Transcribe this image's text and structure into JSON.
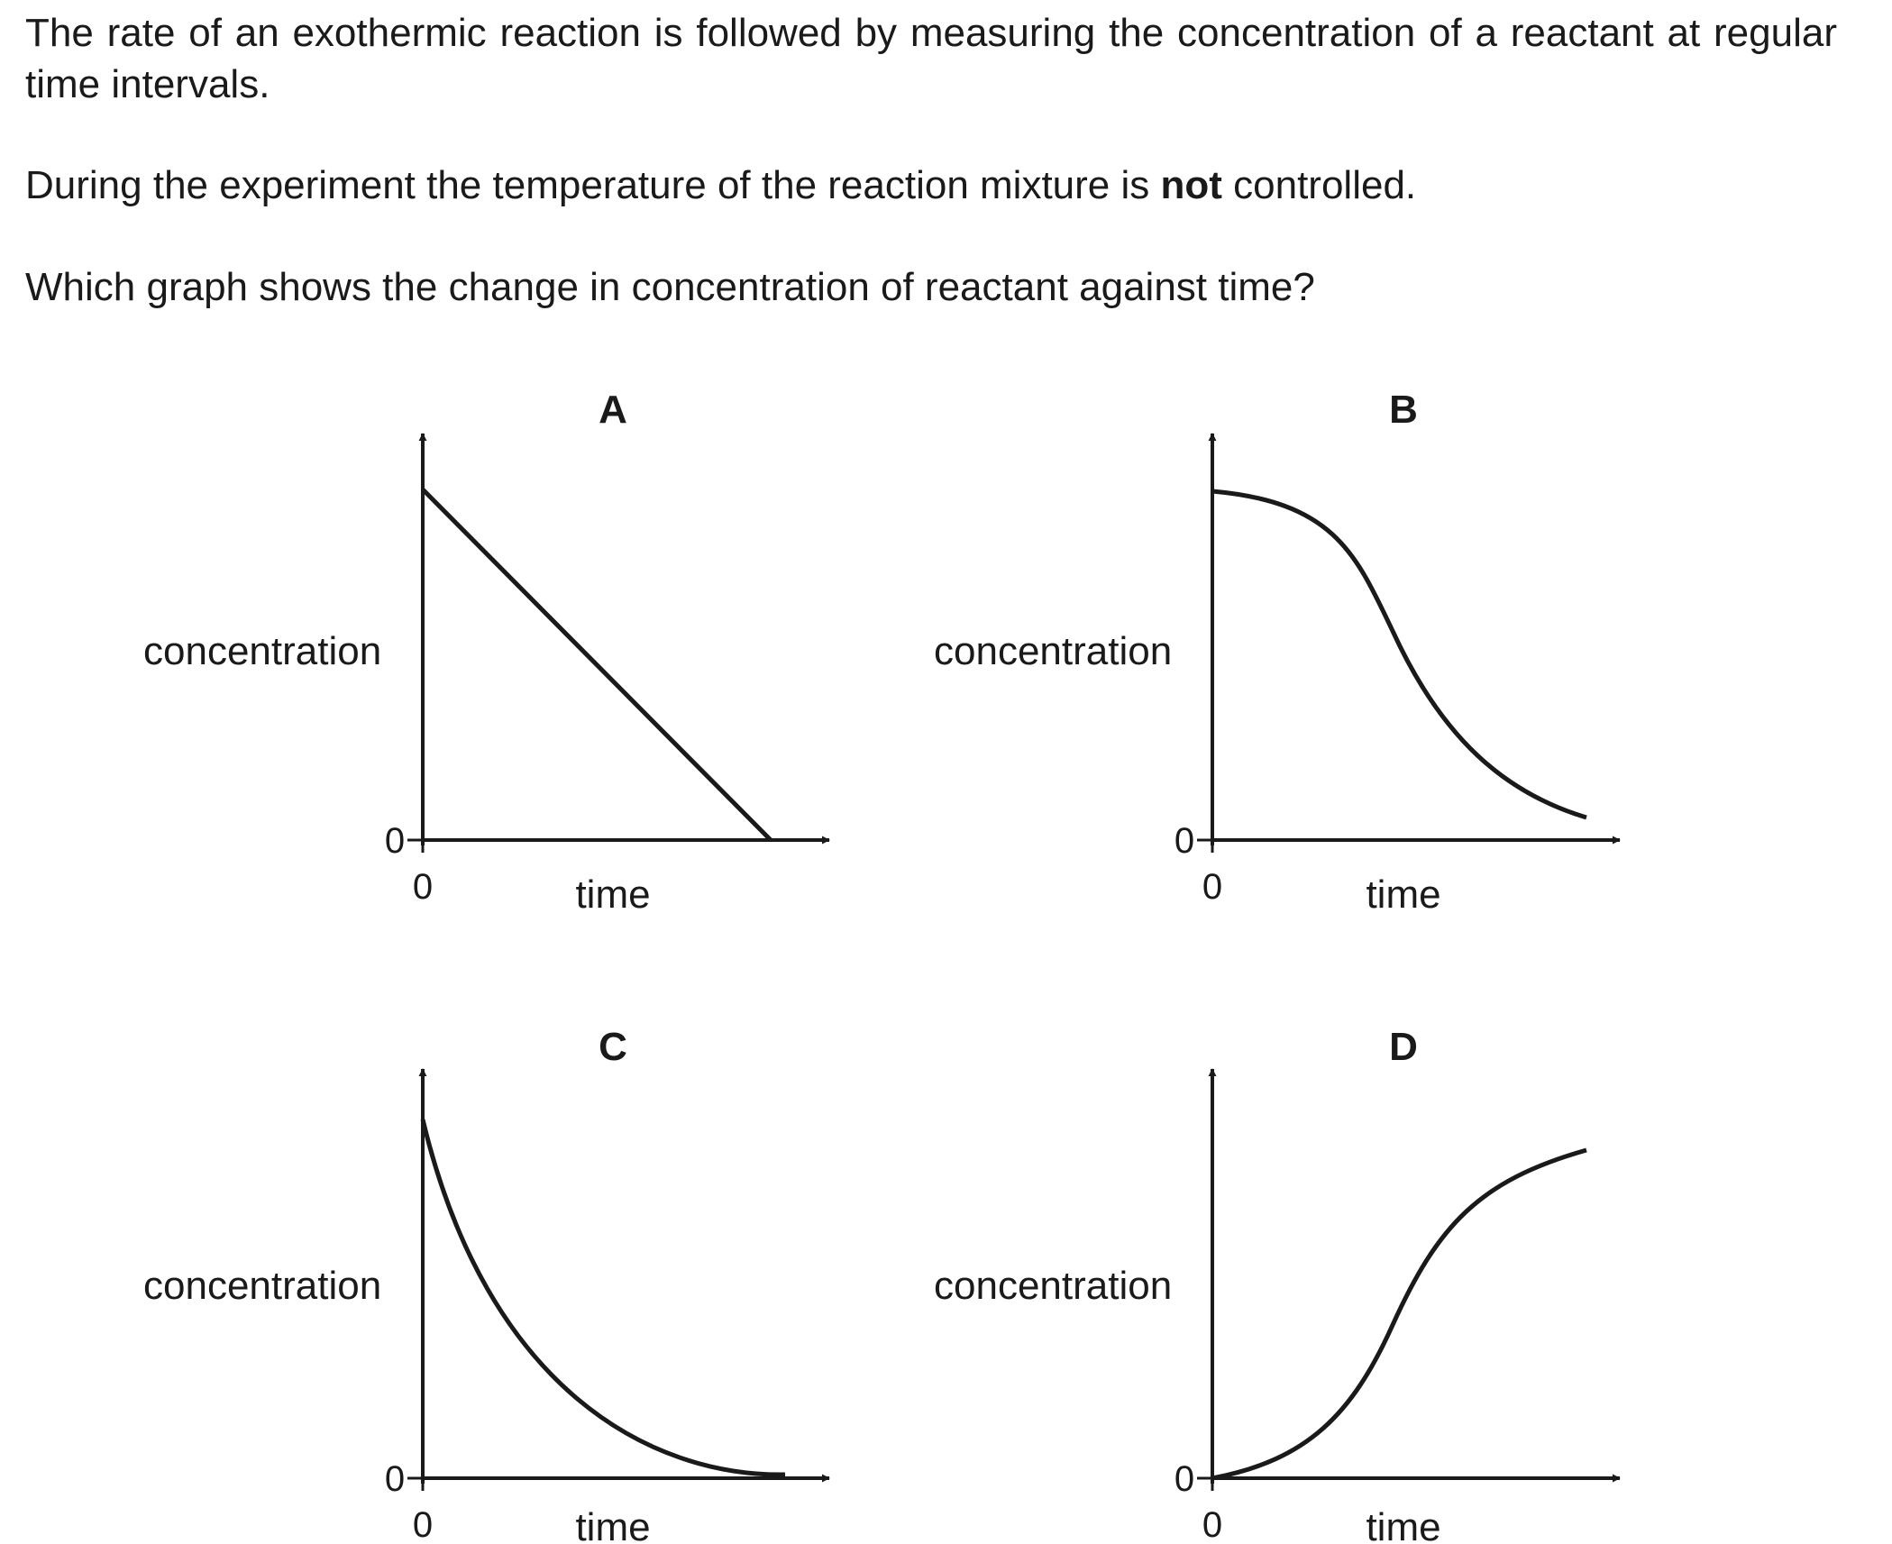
{
  "question": {
    "para1": "The rate of an exothermic reaction is followed by measuring the concentration of a reactant at regular time intervals.",
    "para2_before": "During the experiment the temperature of the reaction mixture is ",
    "para2_bold": "not",
    "para2_after": " controlled.",
    "para3": "Which graph shows the change in concentration of reactant against time?"
  },
  "graphs": [
    {
      "letter": "A",
      "ylabel": "concentration",
      "xlabel": "time",
      "y_origin": "0",
      "x_origin": "0",
      "curve": "straight line decreasing to zero"
    },
    {
      "letter": "B",
      "ylabel": "concentration",
      "xlabel": "time",
      "y_origin": "0",
      "x_origin": "0",
      "curve": "slow decrease, then rapid, then levelling off"
    },
    {
      "letter": "C",
      "ylabel": "concentration",
      "xlabel": "time",
      "y_origin": "0",
      "x_origin": "0",
      "curve": "steep initial decrease, levelling off towards zero"
    },
    {
      "letter": "D",
      "ylabel": "concentration",
      "xlabel": "time",
      "y_origin": "0",
      "x_origin": "0",
      "curve": "slow increase, then rapid, then levelling off"
    }
  ],
  "colors": {
    "ink": "#1a1a1a",
    "background": "#ffffff"
  }
}
